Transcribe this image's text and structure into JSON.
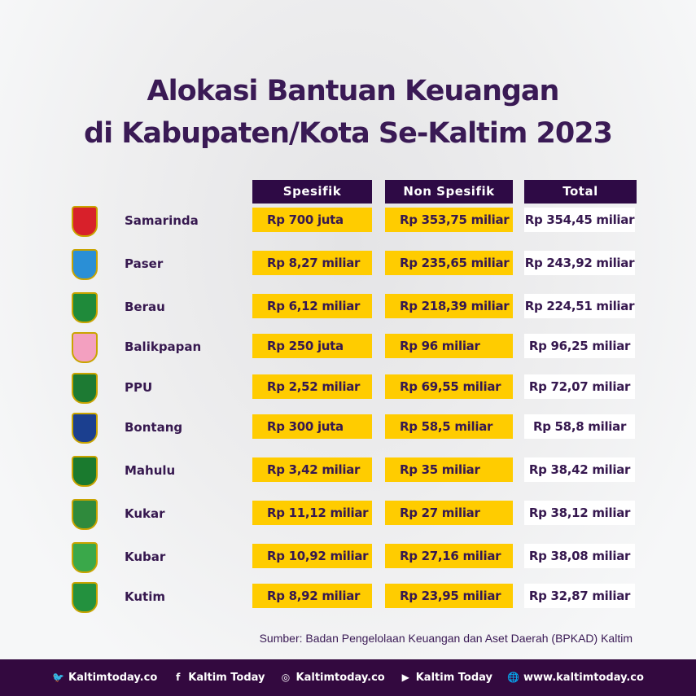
{
  "title": {
    "line1": "Alokasi Bantuan Keuangan",
    "line2": "di Kabupaten/Kota Se-Kaltim 2023"
  },
  "columns": {
    "spesifik": "Spesifik",
    "non_spesifik": "Non Spesifik",
    "total": "Total"
  },
  "colors": {
    "purple": "#2e0a45",
    "yellow": "#ffcc00",
    "text": "#36184f"
  },
  "rows": [
    {
      "name": "Samarinda",
      "spesifik": "Rp 700 juta",
      "non_spesifik": "Rp 353,75 miliar",
      "total": "Rp 354,45 miliar",
      "logo_color": "#d8202a"
    },
    {
      "name": "Paser",
      "spesifik": "Rp 8,27 miliar",
      "non_spesifik": "Rp 235,65 miliar",
      "total": "Rp 243,92 miliar",
      "logo_color": "#2a8fd6"
    },
    {
      "name": "Berau",
      "spesifik": "Rp 6,12 miliar",
      "non_spesifik": "Rp 218,39 miliar",
      "total": "Rp 224,51 miliar",
      "logo_color": "#1f8a3a"
    },
    {
      "name": "Balikpapan",
      "spesifik": "Rp 250 juta",
      "non_spesifik": "Rp 96 miliar",
      "total": "Rp 96,25 miliar",
      "logo_color": "#f3a0c0"
    },
    {
      "name": "PPU",
      "spesifik": "Rp 2,52 miliar",
      "non_spesifik": "Rp 69,55 miliar",
      "total": "Rp 72,07 miliar",
      "logo_color": "#1d7a33"
    },
    {
      "name": "Bontang",
      "spesifik": "Rp 300 juta",
      "non_spesifik": "Rp 58,5 miliar",
      "total": "Rp 58,8 miliar",
      "logo_color": "#1b3f8f"
    },
    {
      "name": "Mahulu",
      "spesifik": "Rp 3,42 miliar",
      "non_spesifik": "Rp 35 miliar",
      "total": "Rp 38,42 miliar",
      "logo_color": "#1a7a2e"
    },
    {
      "name": "Kukar",
      "spesifik": "Rp 11,12 miliar",
      "non_spesifik": "Rp 27 miliar",
      "total": "Rp 38,12 miliar",
      "logo_color": "#2f8a3c"
    },
    {
      "name": "Kubar",
      "spesifik": "Rp 10,92 miliar",
      "non_spesifik": "Rp 27,16 miliar",
      "total": "Rp 38,08 miliar",
      "logo_color": "#3aa84a"
    },
    {
      "name": "Kutim",
      "spesifik": "Rp 8,92 miliar",
      "non_spesifik": "Rp 23,95 miliar",
      "total": "Rp 32,87 miliar",
      "logo_color": "#23913e"
    }
  ],
  "source": "Sumber: Badan Pengelolaan Keuangan dan Aset Daerah (BPKAD) Kaltim",
  "footer": [
    {
      "icon": "twitter-icon",
      "glyph": "🐦",
      "label": "Kaltimtoday.co"
    },
    {
      "icon": "facebook-icon",
      "glyph": "f",
      "label": "Kaltim Today"
    },
    {
      "icon": "instagram-icon",
      "glyph": "◎",
      "label": "Kaltimtoday.co"
    },
    {
      "icon": "youtube-icon",
      "glyph": "▶",
      "label": "Kaltim Today"
    },
    {
      "icon": "globe-icon",
      "glyph": "🌐",
      "label": "www.kaltimtoday.co"
    }
  ]
}
